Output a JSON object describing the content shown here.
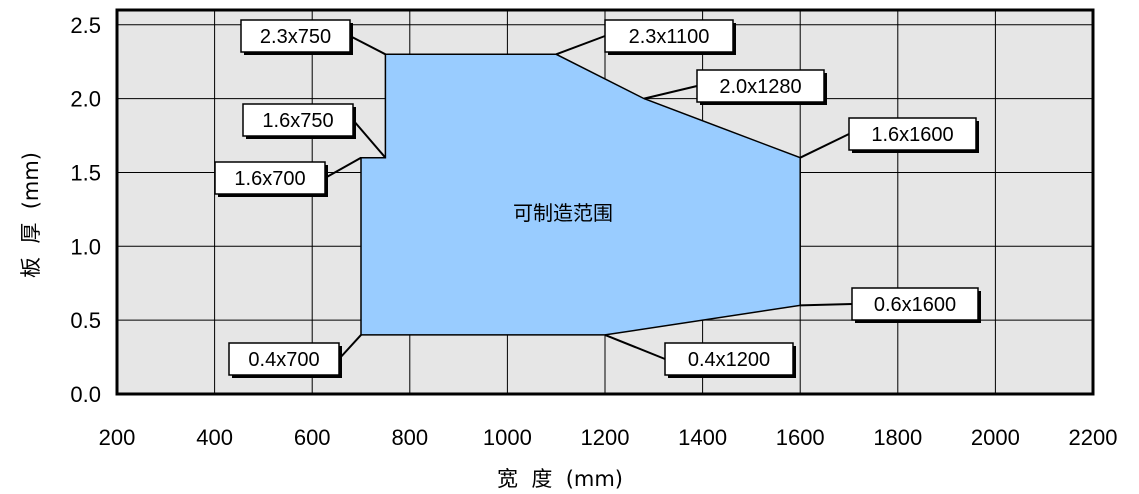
{
  "chart_data": {
    "type": "area",
    "xlabel": "宽  度  (mm)",
    "ylabel": "板  厚  (mm)",
    "xlim": [
      200,
      2200
    ],
    "ylim": [
      0.0,
      2.5
    ],
    "x_ticks": [
      "200",
      "400",
      "600",
      "800",
      "1000",
      "1200",
      "1400",
      "1600",
      "1800",
      "2000",
      "2200"
    ],
    "y_ticks": [
      "0.0",
      "0.5",
      "1.0",
      "1.5",
      "2.0",
      "2.5"
    ],
    "grid": true,
    "region": {
      "label": "可制造范围",
      "color": "#99ccff",
      "points": [
        {
          "x": 700,
          "y": 0.4
        },
        {
          "x": 700,
          "y": 1.6
        },
        {
          "x": 750,
          "y": 1.6
        },
        {
          "x": 750,
          "y": 2.3
        },
        {
          "x": 1100,
          "y": 2.3
        },
        {
          "x": 1280,
          "y": 2.0
        },
        {
          "x": 1600,
          "y": 1.6
        },
        {
          "x": 1600,
          "y": 0.6
        },
        {
          "x": 1200,
          "y": 0.4
        }
      ]
    },
    "annotations": [
      {
        "text": "2.3x750",
        "x": 750,
        "y": 2.3
      },
      {
        "text": "2.3x1100",
        "x": 1100,
        "y": 2.3
      },
      {
        "text": "2.0x1280",
        "x": 1280,
        "y": 2.0
      },
      {
        "text": "1.6x750",
        "x": 750,
        "y": 1.6
      },
      {
        "text": "1.6x700",
        "x": 700,
        "y": 1.6
      },
      {
        "text": "1.6x1600",
        "x": 1600,
        "y": 1.6
      },
      {
        "text": "0.6x1600",
        "x": 1600,
        "y": 0.6
      },
      {
        "text": "0.4x700",
        "x": 700,
        "y": 0.4
      },
      {
        "text": "0.4x1200",
        "x": 1200,
        "y": 0.4
      }
    ],
    "plot_background": "#e6e6e6",
    "grid_color": "#000000"
  }
}
